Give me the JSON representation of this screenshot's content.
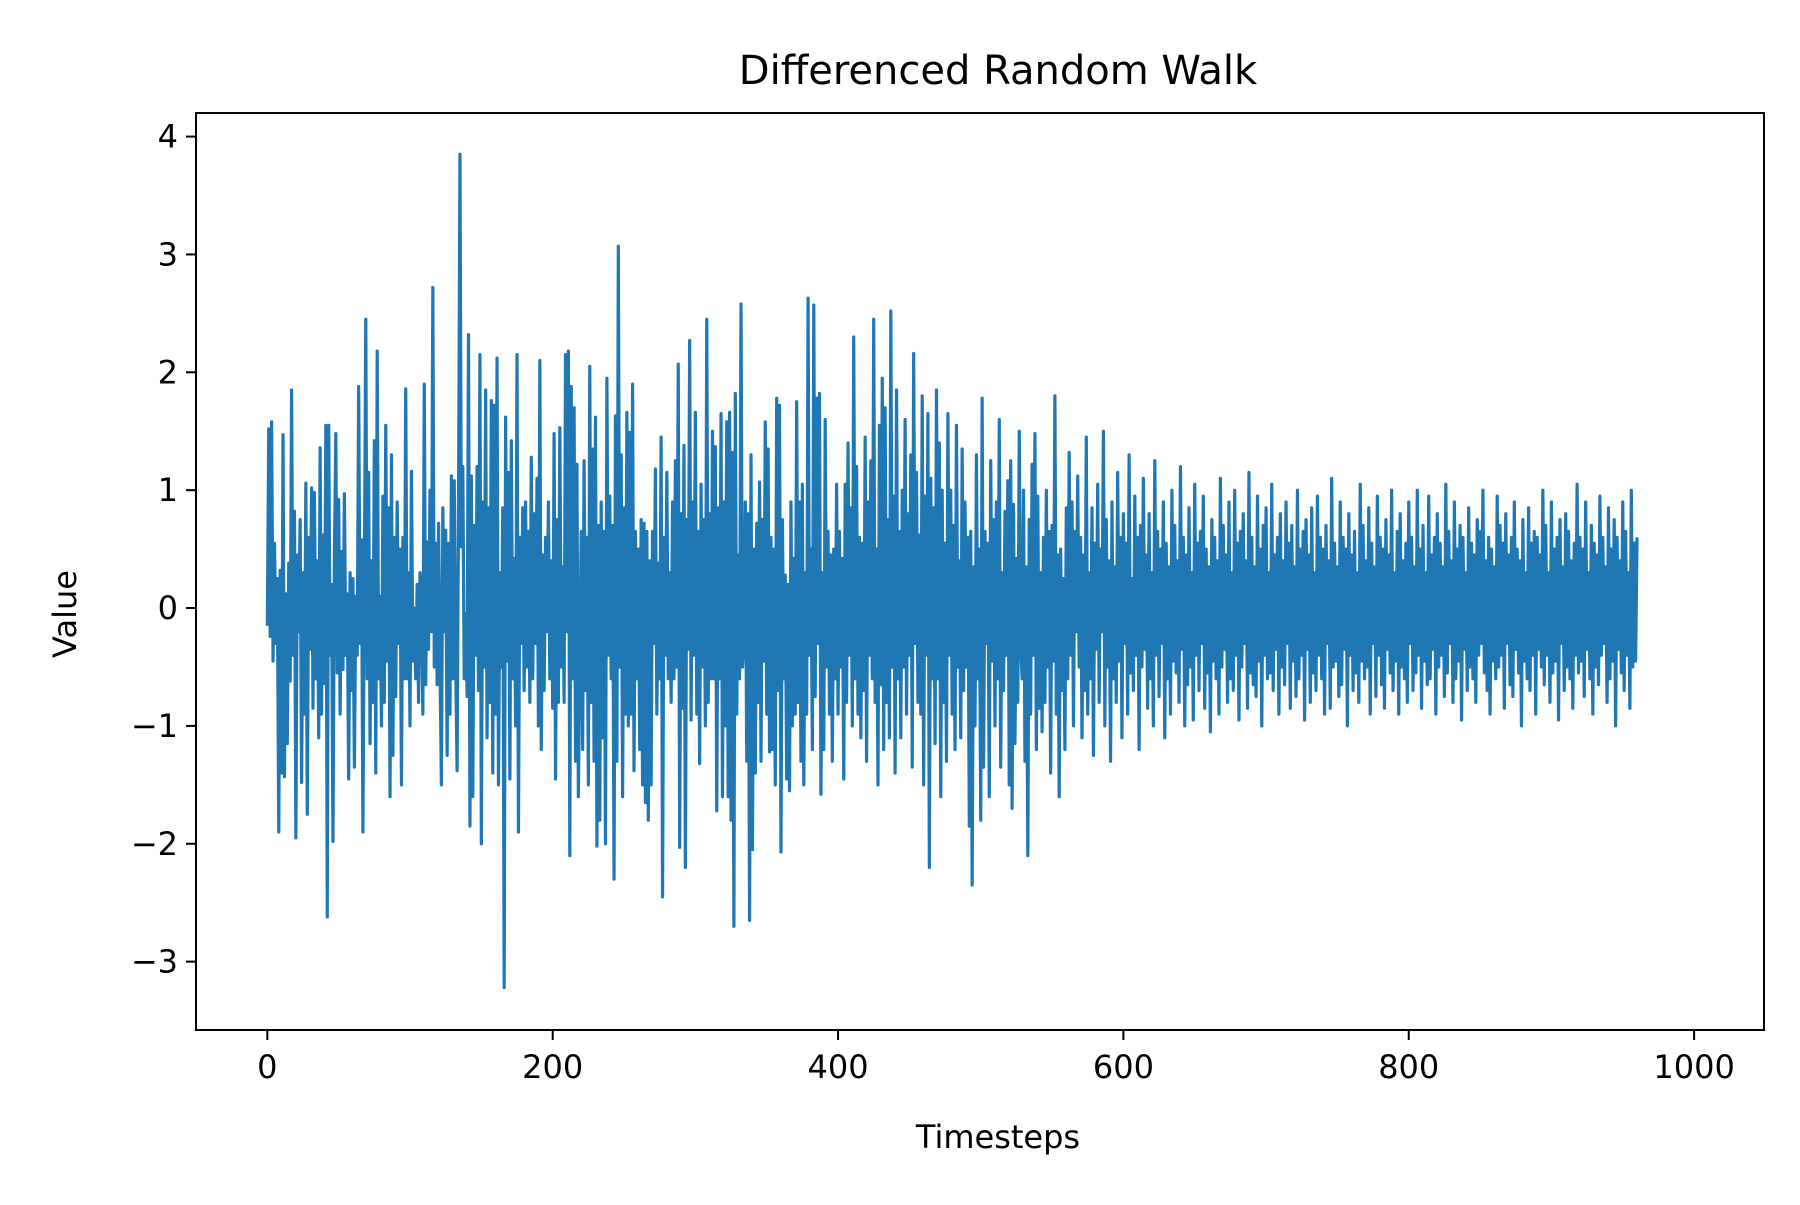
{
  "chart_data": {
    "type": "line",
    "title": "Differenced Random Walk",
    "xlabel": "Timesteps",
    "ylabel": "Value",
    "xlim": [
      -50,
      1049
    ],
    "ylim": [
      -3.58,
      4.2
    ],
    "xticks": [
      0,
      200,
      400,
      600,
      800,
      1000
    ],
    "yticks": [
      -3,
      -2,
      -1,
      0,
      1,
      2,
      3,
      4
    ],
    "xtick_labels": [
      "0",
      "200",
      "400",
      "600",
      "800",
      "1000"
    ],
    "ytick_labels": [
      "−3",
      "−2",
      "−1",
      "0",
      "1",
      "2",
      "3",
      "4"
    ],
    "grid": false,
    "series": [
      {
        "color": "#1f77b4",
        "x_start": 0,
        "x_step": 1,
        "values_note": "",
        "values": [
          -0.15,
          1.52,
          -0.24,
          1.58,
          -0.45,
          0.55,
          -0.3,
          0.25,
          -1.9,
          0.32,
          -1.4,
          1.47,
          -1.43,
          0.12,
          -1.15,
          0.38,
          -0.62,
          1.85,
          -0.4,
          0.82,
          -1.95,
          0.45,
          -0.2,
          0.75,
          -1.48,
          0.3,
          -0.9,
          1.06,
          -1.75,
          0.6,
          -0.35,
          1.02,
          -0.85,
          0.98,
          -0.6,
          0.4,
          -1.1,
          1.36,
          -0.9,
          0.62,
          -0.64,
          1.55,
          -2.62,
          1.55,
          -0.4,
          0.2,
          -1.98,
          0.42,
          1.48,
          -0.55,
          0.92,
          -0.9,
          0.48,
          -0.52,
          0.97,
          -0.4,
          0.12,
          -1.45,
          0.3,
          -0.7,
          0.25,
          -1.35,
          0.1,
          -0.4,
          1.88,
          -0.3,
          0.58,
          -1.9,
          0.25,
          2.45,
          -0.6,
          1.15,
          -1.15,
          0.4,
          -0.8,
          1.42,
          -1.4,
          2.18,
          -0.6,
          0.1,
          -1.0,
          0.95,
          -0.8,
          1.55,
          -0.45,
          0.85,
          -1.6,
          1.3,
          -1.25,
          0.6,
          -0.75,
          0.9,
          -0.3,
          0.5,
          -1.5,
          0.6,
          -0.6,
          1.86,
          -0.6,
          0.3,
          -1.0,
          1.16,
          -0.45,
          0.0,
          -0.6,
          0.2,
          -0.8,
          0.3,
          0.1,
          -0.9,
          1.9,
          -0.65,
          0.56,
          -0.35,
          1.0,
          -0.2,
          2.72,
          -0.5,
          0.55,
          -0.65,
          0.72,
          -0.45,
          -1.5,
          0.85,
          -0.2,
          0.66,
          -1.25,
          0.55,
          -0.9,
          1.12,
          -0.6,
          1.08,
          -0.45,
          -1.38,
          0.9,
          3.85,
          0.52,
          1.2,
          -0.6,
          -0.05,
          -0.75,
          2.32,
          -1.85,
          1.12,
          -1.6,
          0.7,
          -0.4,
          1.2,
          -0.7,
          2.15,
          -2.0,
          0.9,
          -0.5,
          1.85,
          -1.1,
          0.85,
          -0.8,
          1.76,
          -1.4,
          1.72,
          -0.9,
          2.12,
          -1.5,
          0.3,
          -0.5,
          0.85,
          -3.22,
          1.62,
          -0.45,
          1.15,
          -1.45,
          1.42,
          -0.6,
          0.42,
          -1.0,
          2.15,
          -1.9,
          0.6,
          -0.3,
          0.85,
          -0.7,
          0.9,
          -0.5,
          0.65,
          -0.8,
          1.28,
          -0.6,
          0.8,
          -0.3,
          1.1,
          -1.0,
          2.1,
          -1.2,
          0.45,
          -0.7,
          0.6,
          -0.2,
          0.9,
          -0.6,
          0.4,
          -0.85,
          1.48,
          -1.45,
          0.75,
          -0.8,
          1.53,
          -0.5,
          0.35,
          -0.8,
          2.15,
          -0.2,
          2.18,
          -2.1,
          1.88,
          -0.6,
          1.7,
          -1.3,
          1.22,
          -1.6,
          -0.4,
          0.65,
          -1.2,
          1.25,
          -0.7,
          0.6,
          -1.5,
          2.05,
          -0.8,
          1.35,
          -1.3,
          1.62,
          -2.02,
          0.7,
          -1.8,
          0.9,
          -1.1,
          0.65,
          -2.0,
          1.95,
          -0.4,
          0.95,
          -0.6,
          0.7,
          -2.3,
          1.63,
          -1.3,
          3.07,
          -0.5,
          1.3,
          -1.6,
          0.85,
          -0.9,
          1.66,
          -1.0,
          1.49,
          -0.9,
          1.9,
          -1.38,
          0.65,
          -0.6,
          0.5,
          -1.2,
          0.75,
          -1.5,
          0.72,
          -1.65,
          0.65,
          -1.8,
          0.4,
          -1.5,
          0.65,
          -0.3,
          1.18,
          -0.9,
          0.38,
          -0.6,
          1.45,
          -2.45,
          0.6,
          -0.4,
          1.15,
          -0.6,
          0.3,
          -0.8,
          0.9,
          -0.6,
          1.25,
          -0.5,
          2.07,
          -2.03,
          0.8,
          -0.85,
          1.38,
          -2.2,
          0.75,
          -0.35,
          2.27,
          -0.95,
          0.9,
          -0.4,
          1.66,
          -0.9,
          0.65,
          -1.32,
          1.05,
          -0.5,
          0.75,
          -1.0,
          2.45,
          -0.8,
          0.8,
          -0.6,
          1.5,
          -0.6,
          1.37,
          -1.72,
          0.85,
          -0.6,
          1.65,
          -1.6,
          0.9,
          -1.0,
          1.58,
          -1.6,
          1.66,
          -1.8,
          1.32,
          -2.7,
          1.82,
          -0.9,
          0.45,
          -0.6,
          2.58,
          -0.5,
          -0.3,
          0.9,
          -1.3,
          0.8,
          -2.65,
          1.3,
          -2.05,
          0.5,
          -1.4,
          0.72,
          -0.8,
          1.07,
          -1.3,
          0.75,
          -0.45,
          1.58,
          -0.9,
          1.35,
          -1.22,
          0.6,
          -1.2,
          0.5,
          -1.5,
          1.78,
          -0.7,
          1.72,
          -2.07,
          0.75,
          -0.6,
          0.28,
          -1.45,
          0.2,
          -1.55,
          0.9,
          -1.0,
          0.42,
          -0.9,
          1.75,
          -0.8,
          0.9,
          -1.3,
          1.05,
          -1.5,
          0.3,
          -0.9,
          2.63,
          -0.4,
          0.5,
          -1.2,
          2.57,
          -0.75,
          1.78,
          -0.3,
          1.82,
          -1.58,
          0.3,
          -1.2,
          1.6,
          -0.5,
          0.65,
          -0.9,
          0.45,
          -1.3,
          0.5,
          -0.6,
          1.05,
          -0.9,
          0.65,
          -0.5,
          0.42,
          -1.45,
          1.05,
          -0.8,
          1.4,
          -0.4,
          0.85,
          -1.0,
          2.3,
          -0.6,
          1.2,
          -0.9,
          0.6,
          -1.1,
          0.55,
          -0.7,
          1.45,
          -1.3,
          0.9,
          -0.4,
          1.25,
          -0.6,
          2.45,
          -0.8,
          0.5,
          -1.5,
          1.55,
          -0.65,
          1.95,
          -1.2,
          1.7,
          -0.8,
          0.75,
          -1.1,
          2.52,
          -0.5,
          0.95,
          -1.4,
          1.85,
          -0.6,
          0.65,
          -1.1,
          1.0,
          -0.5,
          1.6,
          -0.9,
          0.8,
          -0.4,
          1.3,
          -1.35,
          2.16,
          -0.3,
          1.15,
          -0.8,
          0.62,
          -0.9,
          1.8,
          -1.5,
          0.95,
          -0.4,
          1.65,
          -2.2,
          1.1,
          -0.6,
          0.85,
          -1.15,
          1.85,
          -0.6,
          1.4,
          -1.6,
          1.0,
          -0.8,
          0.55,
          -1.3,
          1.65,
          -0.4,
          1.0,
          -0.9,
          0.7,
          -1.2,
          1.55,
          -0.5,
          0.4,
          -1.1,
          1.35,
          -0.7,
          0.9,
          -0.5,
          0.6,
          -1.85,
          0.65,
          -2.35,
          0.35,
          -1.0,
          1.3,
          -0.6,
          0.5,
          -1.8,
          1.78,
          -1.35,
          0.65,
          -0.3,
          0.55,
          -1.6,
          1.25,
          -0.45,
          0.75,
          -1.0,
          0.9,
          -0.6,
          1.6,
          -1.35,
          0.3,
          -0.7,
          0.82,
          -0.4,
          1.08,
          -1.5,
          1.25,
          -1.7,
          0.88,
          -1.15,
          0.42,
          -0.8,
          1.5,
          -0.3,
          -0.6,
          1.0,
          -1.3,
          0.35,
          -2.1,
          0.75,
          -0.9,
          1.22,
          -0.4,
          1.48,
          -1.2,
          0.95,
          -0.85,
          0.3,
          -1.05,
          0.6,
          -0.8,
          1.0,
          -0.5,
          0.65,
          -1.4,
          0.7,
          -0.45,
          1.8,
          -0.9,
          0.45,
          -1.6,
          0.5,
          -0.7,
          0.25,
          -1.2,
          0.85,
          -0.6,
          1.32,
          -0.4,
          0.9,
          -1.0,
          0.65,
          -0.2,
          1.12,
          -0.5,
          0.6,
          -1.1,
          0.45,
          -0.7,
          1.45,
          -0.9,
          0.3,
          -0.6,
          0.85,
          -1.25,
          0.55,
          -0.35,
          1.05,
          -0.8,
          0.5,
          -0.2,
          1.5,
          -1.0,
          0.75,
          -0.5,
          0.4,
          -1.3,
          0.9,
          -0.6,
          0.35,
          -0.8,
          1.15,
          -0.45,
          0.6,
          -1.1,
          0.8,
          -0.3,
          0.55,
          -0.9,
          1.3,
          -0.55,
          0.25,
          -0.7,
          0.95,
          -0.4,
          0.6,
          -1.2,
          0.7,
          -0.5,
          1.1,
          -0.35,
          0.45,
          -0.85,
          0.8,
          -0.6,
          0.3,
          -1.0,
          1.25,
          -0.4,
          0.65,
          -0.75,
          0.5,
          -0.3,
          0.9,
          -1.1,
          0.55,
          -0.6,
          0.35,
          -0.9,
          1.0,
          -0.45,
          0.7,
          -0.55,
          0.4,
          -0.8,
          1.2,
          -0.35,
          0.6,
          -1.0,
          0.45,
          -0.65,
          0.85,
          -0.5,
          0.3,
          -0.95,
          1.05,
          -0.4,
          0.55,
          -0.7,
          0.65,
          -0.3,
          0.95,
          -0.85,
          0.5,
          -0.55,
          0.35,
          -1.05,
          0.75,
          -0.45,
          0.6,
          -0.6,
          0.4,
          -0.9,
          1.1,
          -0.5,
          0.7,
          -0.35,
          0.45,
          -0.8,
          0.9,
          -0.6,
          0.3,
          -0.7,
          1.0,
          -0.4,
          0.55,
          -0.95,
          0.65,
          -0.5,
          0.8,
          -0.3,
          0.4,
          -0.85,
          1.15,
          -0.55,
          0.6,
          -0.65,
          0.35,
          -0.75,
          0.95,
          -0.45,
          0.5,
          -1.0,
          0.7,
          -0.4,
          0.85,
          -0.6,
          0.3,
          -0.55,
          1.05,
          -0.7,
          0.45,
          -0.35,
          0.6,
          -0.9,
          0.8,
          -0.5,
          0.4,
          -0.65,
          0.9,
          -0.3,
          0.55,
          -0.85,
          0.7,
          -0.45,
          0.35,
          -0.75,
          1.0,
          -0.6,
          0.5,
          -0.4,
          0.65,
          -0.95,
          0.75,
          -0.35,
          0.45,
          -0.8,
          0.85,
          -0.55,
          0.3,
          -0.7,
          0.95,
          -0.4,
          0.6,
          -0.6,
          0.5,
          -0.9,
          0.7,
          -0.3,
          0.4,
          -0.85,
          1.1,
          -0.5,
          0.55,
          -0.45,
          0.35,
          -0.75,
          0.9,
          -0.65,
          0.6,
          -0.35,
          0.5,
          -1.0,
          0.8,
          -0.4,
          0.45,
          -0.7,
          0.65,
          -0.55,
          0.3,
          -0.8,
          1.05,
          -0.45,
          0.7,
          -0.6,
          0.4,
          -0.5,
          0.85,
          -0.9,
          0.55,
          -0.3,
          0.35,
          -0.75,
          0.95,
          -0.4,
          0.6,
          -0.65,
          0.5,
          -0.85,
          0.75,
          -0.35,
          0.45,
          -0.55,
          1.0,
          -0.7,
          0.3,
          -0.45,
          0.65,
          -0.9,
          0.8,
          -0.5,
          0.4,
          -0.6,
          0.55,
          -0.8,
          0.9,
          -0.3,
          0.6,
          -0.7,
          0.35,
          -0.55,
          1.0,
          -0.4,
          0.5,
          -0.85,
          0.7,
          -0.45,
          0.3,
          -0.65,
          0.95,
          -0.6,
          0.45,
          -0.35,
          0.6,
          -0.9,
          0.8,
          -0.5,
          0.55,
          -0.4,
          0.35,
          -0.75,
          1.05,
          -0.55,
          0.65,
          -0.3,
          0.4,
          -0.8,
          0.9,
          -0.6,
          0.5,
          -0.45,
          0.7,
          -0.95,
          0.6,
          -0.35,
          0.3,
          -0.7,
          0.85,
          -0.5,
          0.55,
          -0.6,
          0.45,
          -0.8,
          0.75,
          -0.4,
          0.65,
          -0.3,
          1.0,
          -0.55,
          0.4,
          -0.7,
          0.6,
          -0.9,
          0.5,
          -0.45,
          0.35,
          -0.6,
          0.95,
          -0.5,
          0.7,
          -0.4,
          0.55,
          -0.85,
          0.8,
          -0.3,
          0.45,
          -0.65,
          0.6,
          -0.75,
          0.9,
          -0.35,
          0.5,
          -0.55,
          0.4,
          -1.0,
          0.75,
          -0.45,
          0.3,
          -0.6,
          0.85,
          -0.7,
          0.55,
          -0.4,
          0.65,
          -0.9,
          0.6,
          -0.35,
          0.45,
          -0.5,
          1.0,
          -0.65,
          0.7,
          -0.4,
          0.3,
          -0.8,
          0.9,
          -0.55,
          0.5,
          -0.45,
          0.6,
          -0.95,
          0.75,
          -0.3,
          0.35,
          -0.7,
          0.8,
          -0.5,
          0.65,
          -0.6,
          0.4,
          -0.85,
          0.55,
          -0.4,
          1.05,
          -0.55,
          0.6,
          -0.45,
          0.5,
          -0.75,
          0.9,
          -0.35,
          0.3,
          -0.6,
          0.7,
          -0.9,
          0.55,
          -0.5,
          0.45,
          -0.65,
          0.95,
          -0.4,
          0.6,
          -0.3,
          0.35,
          -0.8,
          0.85,
          -0.6,
          0.5,
          -0.45,
          0.75,
          -1.0,
          0.6,
          -0.35,
          0.4,
          -0.55,
          0.9,
          -0.7,
          0.65,
          -0.4,
          0.3,
          -0.85,
          1.0,
          -0.5,
          0.55,
          -0.45,
          0.6
        ]
      }
    ]
  }
}
